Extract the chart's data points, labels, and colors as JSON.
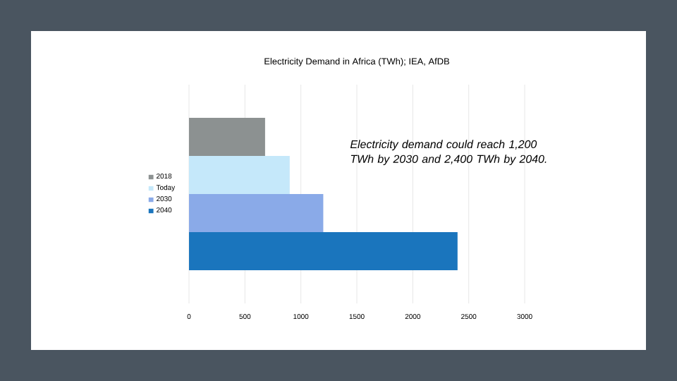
{
  "chart_data": {
    "type": "bar",
    "orientation": "horizontal",
    "title": "Electricity Demand in Africa (TWh); IEA, AfDB",
    "categories": [
      null
    ],
    "series": [
      {
        "name": "2018",
        "color": "#8c9191",
        "values": [
          680
        ]
      },
      {
        "name": "Today",
        "color": "#c5e8fa",
        "values": [
          900
        ]
      },
      {
        "name": "2030",
        "color": "#8aaae8",
        "values": [
          1200
        ]
      },
      {
        "name": "2040",
        "color": "#1a75bd",
        "values": [
          2400
        ]
      }
    ],
    "xlim": [
      0,
      3000
    ],
    "xticks": [
      0,
      500,
      1000,
      1500,
      2000,
      2500,
      3000
    ],
    "grid": "x",
    "legend": "left",
    "annotations": [
      "Electricity demand could reach 1,200 TWh by 2030 and 2,400 TWh by 2040."
    ]
  }
}
